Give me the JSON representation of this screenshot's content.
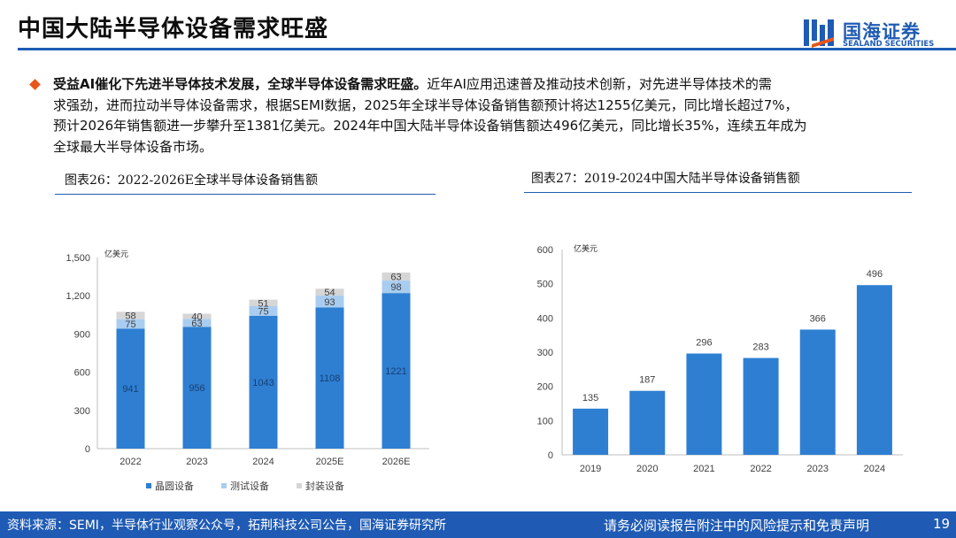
{
  "header": {
    "title": "中国大陆半导体设备需求旺盛",
    "logo_cn": "国海证券",
    "logo_en": "SEALAND SECURITIES"
  },
  "bullet": {
    "bold": "受益AI催化下先进半导体技术发展，全球半导体设备需求旺盛。",
    "line1_rest": "近年AI应用迅速普及推动技术创新，对先进半导体技术的需",
    "line2": "求强劲，进而拉动半导体设备需求，根据SEMI数据，2025年全球半导体设备销售额预计将达1255亿美元，同比增长超过7%，",
    "line3": "预计2026年销售额进一步攀升至1381亿美元。2024年中国大陆半导体设备销售额达496亿美元，同比增长35%，连续五年成为",
    "line4": "全球最大半导体设备市场。"
  },
  "figure1": {
    "caption": "图表26：2022-2026E全球半导体设备销售额"
  },
  "figure2": {
    "caption": "图表27：2019-2024中国大陆半导体设备销售额"
  },
  "colors": {
    "brand": "#1f5bb4",
    "bar_dark": "#2e7fd2",
    "bar_light": "#a9cdf0",
    "bar_gray": "#d6d6d6",
    "accent": "#e8561c"
  },
  "chart_data": [
    {
      "type": "bar",
      "stacked": true,
      "unit_label": "亿美元",
      "categories": [
        "2022",
        "2023",
        "2024",
        "2025E",
        "2026E"
      ],
      "ylim": [
        0,
        1500
      ],
      "yticks": [
        "0",
        "300",
        "600",
        "900",
        "1,200",
        "1,500"
      ],
      "grid": false,
      "legend_position": "bottom",
      "series": [
        {
          "name": "晶圆设备",
          "color": "#2e7fd2",
          "values": [
            941,
            956,
            1043,
            1108,
            1221
          ]
        },
        {
          "name": "测试设备",
          "color": "#a9cdf0",
          "values": [
            75,
            63,
            75,
            93,
            98
          ]
        },
        {
          "name": "封装设备",
          "color": "#d6d6d6",
          "values": [
            58,
            40,
            51,
            54,
            63
          ]
        }
      ]
    },
    {
      "type": "bar",
      "unit_label": "亿美元",
      "categories": [
        "2019",
        "2020",
        "2021",
        "2022",
        "2023",
        "2024"
      ],
      "values": [
        135,
        187,
        296,
        283,
        366,
        496
      ],
      "ylim": [
        0,
        600
      ],
      "yticks": [
        "0",
        "100",
        "200",
        "300",
        "400",
        "500",
        "600"
      ],
      "grid": false,
      "color": "#2e7fd2"
    }
  ],
  "footer": {
    "source": "资料来源：SEMI，半导体行业观察公众号，拓荆科技公司公告，国海证券研究所",
    "disclaimer": "请务必阅读报告附注中的风险提示和免责声明",
    "page_number": "19"
  }
}
